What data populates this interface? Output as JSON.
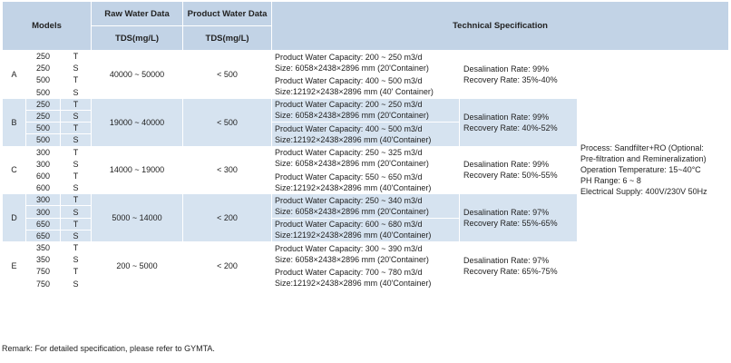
{
  "headers": {
    "models": "Models",
    "raw_water": "Raw Water Data",
    "product_water": "Product Water Data",
    "tech_spec": "Technical Specification",
    "raw_tds": "TDS(mg/L)",
    "product_tds": "TDS(mg/L)"
  },
  "groups": [
    {
      "letter": "A",
      "rows": [
        [
          "250",
          "T"
        ],
        [
          "250",
          "S"
        ],
        [
          "500",
          "T"
        ],
        [
          "500",
          "S"
        ]
      ],
      "raw_tds": "40000 ~ 50000",
      "product_tds": "< 500",
      "spec1": [
        "Product Water Capacity: 200 ~ 250 m3/d",
        "Size: 6058×2438×2896 mm (20'Container)"
      ],
      "spec2": [
        "Product Water Capacity: 400 ~ 500 m3/d",
        "Size:12192×2438×2896 mm  (40' Container)"
      ],
      "rates": [
        "Desalination Rate: 99%",
        "Recovery Rate: 35%-40%"
      ]
    },
    {
      "letter": "B",
      "rows": [
        [
          "250",
          "T"
        ],
        [
          "250",
          "S"
        ],
        [
          "500",
          "T"
        ],
        [
          "500",
          "S"
        ]
      ],
      "raw_tds": "19000 ~ 40000",
      "product_tds": "< 500",
      "spec1": [
        "Product Water Capacity: 200 ~ 250 m3/d",
        "Size: 6058×2438×2896 mm (20'Container)"
      ],
      "spec2": [
        "Product Water Capacity: 400 ~ 500 m3/d",
        "Size:12192×2438×2896 mm (40'Container)"
      ],
      "rates": [
        "Desalination Rate: 99%",
        "Recovery Rate: 40%-52%"
      ]
    },
    {
      "letter": "C",
      "rows": [
        [
          "300",
          "T"
        ],
        [
          "300",
          "S"
        ],
        [
          "600",
          "T"
        ],
        [
          "600",
          "S"
        ]
      ],
      "raw_tds": "14000 ~ 19000",
      "product_tds": "< 300",
      "spec1": [
        "Product Water Capacity: 250 ~ 325 m3/d",
        "Size: 6058×2438×2896 mm (20'Container)"
      ],
      "spec2": [
        "Product Water Capacity: 550 ~ 650 m3/d",
        "Size:12192×2438×2896 mm (40'Container)"
      ],
      "rates": [
        "Desalination Rate: 99%",
        "Recovery Rate: 50%-55%"
      ]
    },
    {
      "letter": "D",
      "rows": [
        [
          "300",
          "T"
        ],
        [
          "300",
          "S"
        ],
        [
          "650",
          "T"
        ],
        [
          "650",
          "S"
        ]
      ],
      "raw_tds": "5000 ~ 14000",
      "product_tds": "< 200",
      "spec1": [
        "Product Water Capacity: 250 ~ 340 m3/d",
        "Size: 6058×2438×2896 mm (20'Container)"
      ],
      "spec2": [
        "Product Water Capacity: 600 ~ 680 m3/d",
        "Size:12192×2438×2896 mm (40'Container)"
      ],
      "rates": [
        "Desalination Rate: 97%",
        "Recovery Rate: 55%-65%"
      ]
    },
    {
      "letter": "E",
      "rows": [
        [
          "350",
          "T"
        ],
        [
          "350",
          "S"
        ],
        [
          "750",
          "T"
        ],
        [
          "750",
          "S"
        ]
      ],
      "raw_tds": "200 ~ 5000",
      "product_tds": "< 200",
      "spec1": [
        "Product Water Capacity: 300 ~ 390 m3/d",
        "Size: 6058×2438×2896 mm (20'Container)"
      ],
      "spec2": [
        "Product Water Capacity: 700 ~ 780 m3/d",
        "Size:12192×2438×2896 mm (40'Container)"
      ],
      "rates": [
        "Desalination Rate: 97%",
        "Recovery Rate: 65%-75%"
      ]
    }
  ],
  "general": [
    "Process: Sandfilter+RO (Optional:",
    "Pre-filtration and Remineralization)",
    "Operation Temperature: 15~40°C",
    "PH Range: 6 ~ 8",
    "Electrical Supply: 400V/230V 50Hz"
  ],
  "remark": "Remark: For detailed specification, please refer to GYMTA."
}
